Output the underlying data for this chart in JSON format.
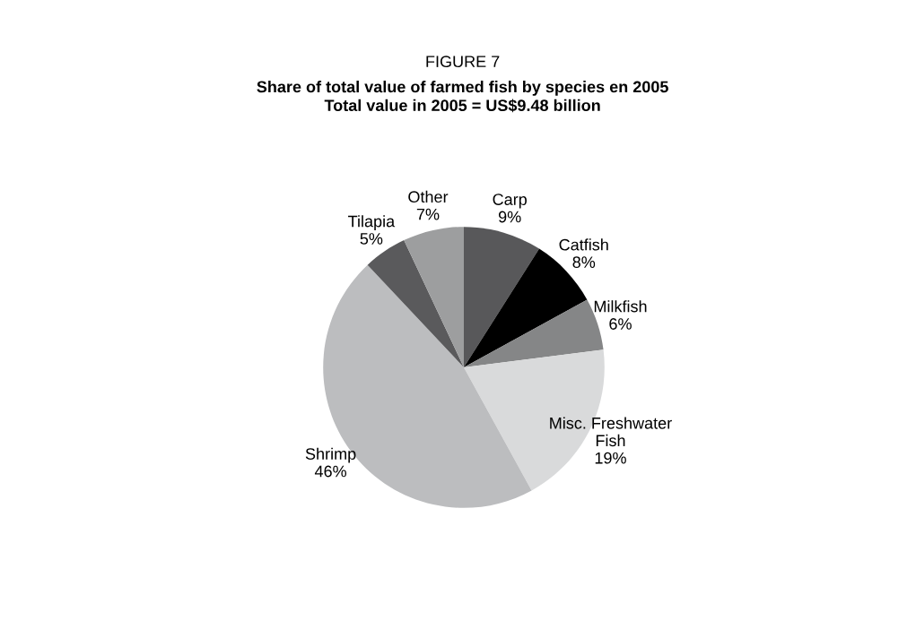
{
  "chart_data": {
    "type": "pie",
    "title": "FIGURE 7",
    "subtitle": "Share of total value of farmed fish by species en 2005\nTotal value in 2005 = US$9.48 billion",
    "categories": [
      "Carp",
      "Catfish",
      "Milkfish",
      "Misc. Freshwater\nFish",
      "Shrimp",
      "Tilapia",
      "Other"
    ],
    "values": [
      9,
      8,
      6,
      19,
      46,
      5,
      7
    ],
    "value_labels": [
      "9%",
      "8%",
      "6%",
      "19%",
      "46%",
      "5%",
      "7%"
    ],
    "colors": [
      "#58585a",
      "#000000",
      "#858687",
      "#d9dadb",
      "#bcbdbf",
      "#5a5a5c",
      "#9d9e9f"
    ]
  }
}
